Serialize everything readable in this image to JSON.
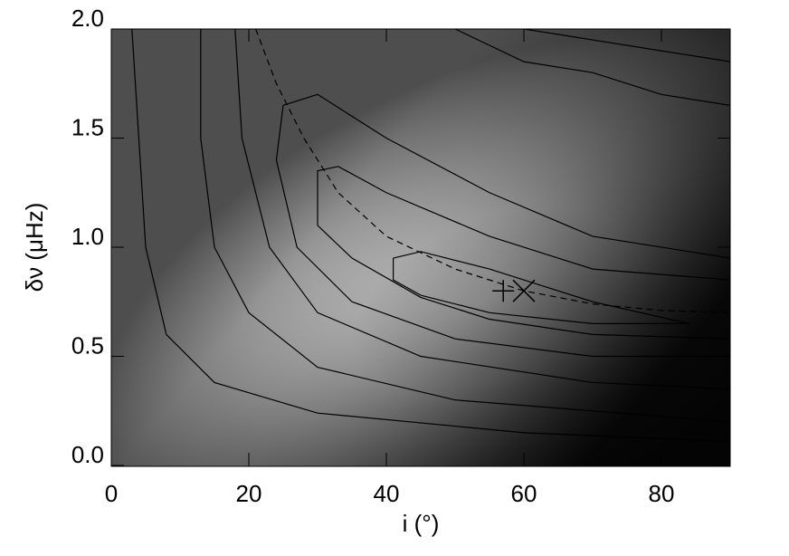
{
  "chart_data": {
    "type": "contour",
    "xlabel": "i (°)",
    "ylabel": "δν (μHz)",
    "xlim": [
      0,
      90
    ],
    "ylim": [
      0,
      2
    ],
    "xticks": [
      0,
      20,
      40,
      60,
      80
    ],
    "yticks": [
      {
        "value": 0,
        "label": "0.0"
      },
      0.5,
      {
        "value": 1,
        "label": "1.0"
      },
      1.5,
      {
        "value": 2,
        "label": "2.0"
      }
    ],
    "contours": [
      {
        "x": [
          3,
          4,
          5,
          8,
          15,
          30,
          60,
          90
        ],
        "y": [
          2.0,
          1.5,
          1.0,
          0.6,
          0.38,
          0.24,
          0.15,
          0.11
        ]
      },
      {
        "x": [
          13,
          13,
          15,
          20,
          30,
          50,
          90
        ],
        "y": [
          2.0,
          1.5,
          1.0,
          0.7,
          0.45,
          0.3,
          0.2
        ]
      },
      {
        "x": [
          18,
          19,
          23,
          30,
          45,
          70,
          90
        ],
        "y": [
          2.0,
          1.5,
          1.0,
          0.7,
          0.5,
          0.38,
          0.35
        ]
      },
      {
        "x": [
          90,
          70,
          50,
          35,
          27,
          24,
          25,
          30,
          40,
          55,
          70,
          90
        ],
        "y": [
          0.5,
          0.5,
          0.58,
          0.75,
          1.0,
          1.4,
          1.65,
          1.7,
          1.5,
          1.25,
          1.05,
          0.95
        ]
      },
      {
        "x": [
          90,
          70,
          55,
          45,
          35,
          30,
          30,
          33,
          40,
          55,
          70,
          90
        ],
        "y": [
          0.58,
          0.6,
          0.67,
          0.77,
          0.95,
          1.1,
          1.35,
          1.37,
          1.25,
          1.05,
          0.9,
          0.85
        ]
      },
      {
        "x": [
          41,
          45,
          55,
          70,
          84,
          70,
          55,
          45,
          41,
          41
        ],
        "y": [
          0.95,
          0.98,
          0.9,
          0.75,
          0.65,
          0.65,
          0.7,
          0.78,
          0.85,
          0.95
        ]
      },
      {
        "x": [
          50,
          60,
          70,
          80,
          90
        ],
        "y": [
          2.0,
          1.85,
          1.8,
          1.7,
          1.65
        ]
      },
      {
        "x": [
          60,
          70,
          80,
          90
        ],
        "y": [
          2.0,
          1.95,
          1.9,
          1.85
        ]
      }
    ],
    "curve": {
      "x": [
        21,
        24,
        28,
        33,
        40,
        50,
        60,
        70,
        80,
        90
      ],
      "y": [
        2.0,
        1.75,
        1.5,
        1.25,
        1.05,
        0.9,
        0.8,
        0.74,
        0.71,
        0.7
      ]
    },
    "markers": [
      {
        "x": 57,
        "y": 0.8,
        "symbol": "plus"
      },
      {
        "x": 60,
        "y": 0.8,
        "symbol": "cross"
      }
    ]
  }
}
